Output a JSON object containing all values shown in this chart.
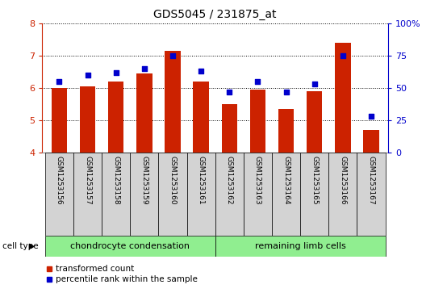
{
  "title": "GDS5045 / 231875_at",
  "samples": [
    "GSM1253156",
    "GSM1253157",
    "GSM1253158",
    "GSM1253159",
    "GSM1253160",
    "GSM1253161",
    "GSM1253162",
    "GSM1253163",
    "GSM1253164",
    "GSM1253165",
    "GSM1253166",
    "GSM1253167"
  ],
  "transformed_count": [
    6.0,
    6.05,
    6.2,
    6.45,
    7.15,
    6.2,
    5.5,
    5.95,
    5.35,
    5.9,
    7.4,
    4.7
  ],
  "percentile_rank": [
    55,
    60,
    62,
    65,
    75,
    63,
    47,
    55,
    47,
    53,
    75,
    28
  ],
  "ylim_left": [
    4,
    8
  ],
  "ylim_right": [
    0,
    100
  ],
  "yticks_left": [
    4,
    5,
    6,
    7,
    8
  ],
  "yticks_right": [
    0,
    25,
    50,
    75,
    100
  ],
  "bar_color": "#cc2200",
  "scatter_color": "#0000cc",
  "bar_bottom": 4,
  "group_labels": [
    "chondrocyte condensation",
    "remaining limb cells"
  ],
  "group_sizes": [
    6,
    6
  ],
  "cell_type_label": "cell type",
  "legend_red_label": "transformed count",
  "legend_blue_label": "percentile rank within the sample",
  "background_color": "#ffffff",
  "grid_color": "#000000",
  "tick_label_color_left": "#cc2200",
  "tick_label_color_right": "#0000cc",
  "green_color": "#90ee90",
  "gray_color": "#d3d3d3"
}
